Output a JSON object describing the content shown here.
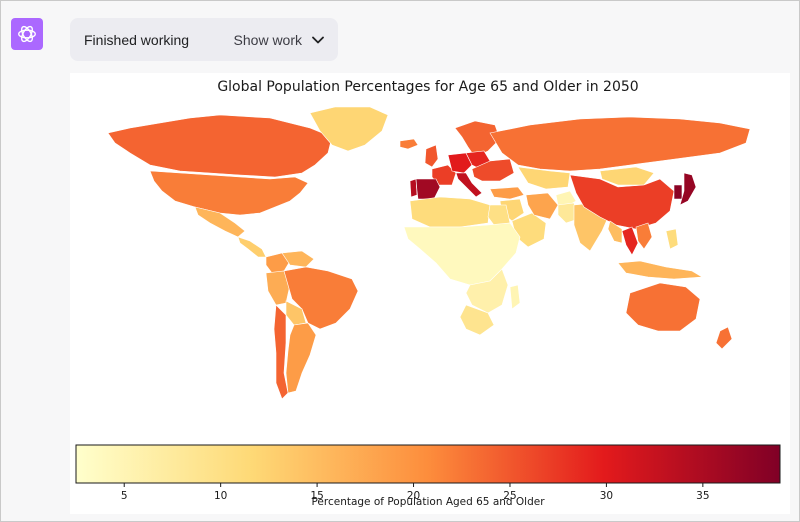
{
  "app": {
    "status_text": "Finished working",
    "show_work_label": "Show work",
    "avatar_icon": "openai-logo-icon",
    "chevron_icon": "chevron-down-icon",
    "avatar_color": "#ab68ff"
  },
  "chart_data": {
    "type": "choropleth",
    "title": "Global Population Percentages for Age 65 and Older in 2050",
    "colorbar": {
      "label": "Percentage of Population Aged 65 and Older",
      "range": [
        2.5,
        39
      ],
      "ticks": [
        "5",
        "10",
        "15",
        "20",
        "25",
        "30",
        "35"
      ],
      "colormap": [
        "#ffffcc",
        "#fed976",
        "#fd8d3c",
        "#e31a1c",
        "#800026"
      ],
      "orientation": "horizontal",
      "position": "bottom"
    },
    "regions": [
      {
        "name": "Canada",
        "value": 24
      },
      {
        "name": "United States",
        "value": 22
      },
      {
        "name": "Mexico",
        "value": 16
      },
      {
        "name": "Central America",
        "value": 13
      },
      {
        "name": "Brazil",
        "value": 22
      },
      {
        "name": "Argentina",
        "value": 19
      },
      {
        "name": "Chile",
        "value": 24
      },
      {
        "name": "Peru",
        "value": 17
      },
      {
        "name": "Colombia",
        "value": 19
      },
      {
        "name": "Venezuela",
        "value": 16
      },
      {
        "name": "Bolivia",
        "value": 14
      },
      {
        "name": "Greenland",
        "value": 12
      },
      {
        "name": "Iceland",
        "value": 22
      },
      {
        "name": "United Kingdom",
        "value": 25
      },
      {
        "name": "Spain",
        "value": 36
      },
      {
        "name": "Portugal",
        "value": 34
      },
      {
        "name": "France",
        "value": 27
      },
      {
        "name": "Italy",
        "value": 33
      },
      {
        "name": "Germany",
        "value": 30
      },
      {
        "name": "Poland",
        "value": 29
      },
      {
        "name": "Scandinavia",
        "value": 24
      },
      {
        "name": "Eastern Europe",
        "value": 26
      },
      {
        "name": "Russia",
        "value": 23
      },
      {
        "name": "Kazakhstan",
        "value": 12
      },
      {
        "name": "Turkey",
        "value": 19
      },
      {
        "name": "Middle East",
        "value": 12
      },
      {
        "name": "Saudi Arabia",
        "value": 11
      },
      {
        "name": "Iran",
        "value": 18
      },
      {
        "name": "Afghanistan",
        "value": 5
      },
      {
        "name": "Pakistan",
        "value": 8
      },
      {
        "name": "India",
        "value": 14
      },
      {
        "name": "China",
        "value": 27
      },
      {
        "name": "Mongolia",
        "value": 12
      },
      {
        "name": "Japan",
        "value": 37
      },
      {
        "name": "South Korea",
        "value": 38
      },
      {
        "name": "Thailand",
        "value": 29
      },
      {
        "name": "Vietnam",
        "value": 22
      },
      {
        "name": "Southeast Asia",
        "value": 15
      },
      {
        "name": "Indonesia",
        "value": 16
      },
      {
        "name": "Philippines",
        "value": 11
      },
      {
        "name": "Australia",
        "value": 23
      },
      {
        "name": "New Zealand",
        "value": 23
      },
      {
        "name": "North Africa",
        "value": 11
      },
      {
        "name": "Egypt",
        "value": 10
      },
      {
        "name": "Sub-Saharan Africa",
        "value": 4
      },
      {
        "name": "Southern Africa",
        "value": 6
      },
      {
        "name": "South Africa",
        "value": 9
      },
      {
        "name": "Madagascar",
        "value": 5
      }
    ]
  }
}
